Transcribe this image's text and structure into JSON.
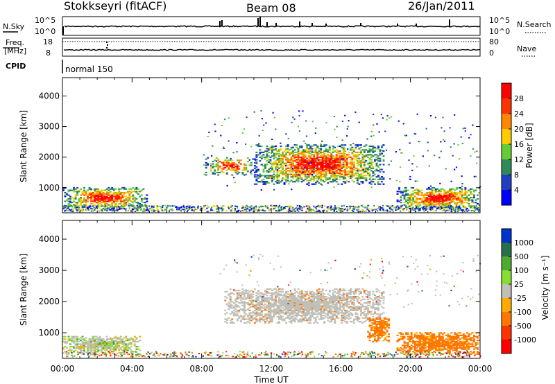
{
  "header": {
    "station": "Stokkseyri (fitACF)",
    "beam": "Beam 08",
    "date": "26/Jan/2011"
  },
  "strip": {
    "nsky_label": "N.Sky",
    "nsearch_label": "N.Search",
    "nsky_ticks": [
      "10^5",
      "10^0"
    ],
    "nsearch_ticks": [
      "10^5",
      "10^0"
    ],
    "freq_label_1": "Freq.",
    "freq_label_2": "[MHz]",
    "freq_ticks": [
      "18",
      "8"
    ],
    "nave_label": "Nave",
    "nave_ticks": [
      "80",
      "0"
    ],
    "cpid_label": "CPID",
    "cpid_value": "normal 150"
  },
  "chart_data": [
    {
      "type": "heatmap",
      "title": "",
      "parameter": "Power",
      "ylabel": "Slant Range [km]",
      "xlabel": "",
      "x_range_hours": [
        0,
        24
      ],
      "ylim": [
        180,
        4600
      ],
      "y_ticks": [
        1000,
        2000,
        3000,
        4000
      ],
      "x_tick_labels": [
        "00:00",
        "04:00",
        "08:00",
        "12:00",
        "16:00",
        "20:00",
        "00:00"
      ],
      "colorbar": {
        "label": "Power [dB]",
        "ticks": [
          "4",
          "8",
          "12",
          "16",
          "20",
          "24",
          "28"
        ],
        "colors": [
          "#0000ff",
          "#1f3fbf",
          "#2e8b57",
          "#66cc33",
          "#ffcc00",
          "#ff8800",
          "#ff3300",
          "#ff0000"
        ]
      },
      "echo_regions": [
        {
          "t_start": 0.0,
          "t_end": 4.8,
          "r_min": 300,
          "r_max": 1000,
          "level": "high"
        },
        {
          "t_start": 8.2,
          "t_end": 11.0,
          "r_min": 1400,
          "r_max": 2000,
          "level": "medium"
        },
        {
          "t_start": 11.0,
          "t_end": 18.5,
          "r_min": 1100,
          "r_max": 2400,
          "level": "high"
        },
        {
          "t_start": 19.2,
          "t_end": 24.0,
          "r_min": 300,
          "r_max": 1000,
          "level": "high"
        }
      ]
    },
    {
      "type": "heatmap",
      "title": "",
      "parameter": "Velocity",
      "ylabel": "Slant Range [km]",
      "xlabel": "Time UT",
      "x_range_hours": [
        0,
        24
      ],
      "ylim": [
        180,
        4600
      ],
      "y_ticks": [
        1000,
        2000,
        3000,
        4000
      ],
      "x_tick_labels": [
        "00:00",
        "04:00",
        "08:00",
        "12:00",
        "16:00",
        "20:00",
        "00:00"
      ],
      "colorbar": {
        "label": "Velocity [m s⁻¹]",
        "ticks": [
          "1000",
          "500",
          "100",
          "25",
          "-25",
          "-100",
          "-500",
          "-1000"
        ],
        "colors": [
          "#0033cc",
          "#2a6f4a",
          "#4daa33",
          "#88dd33",
          "#c0c0b8",
          "#ffaa00",
          "#ff7700",
          "#ff3300",
          "#ff0000"
        ]
      },
      "echo_regions": [
        {
          "t_start": 0.0,
          "t_end": 4.5,
          "r_min": 300,
          "r_max": 900,
          "dominant": "ground scatter / positive"
        },
        {
          "t_start": 9.3,
          "t_end": 18.5,
          "r_min": 1300,
          "r_max": 2400,
          "dominant": "ground scatter"
        },
        {
          "t_start": 17.5,
          "t_end": 18.8,
          "r_min": 700,
          "r_max": 1500,
          "dominant": "negative"
        },
        {
          "t_start": 19.2,
          "t_end": 24.0,
          "r_min": 300,
          "r_max": 1000,
          "dominant": "negative"
        }
      ]
    }
  ]
}
